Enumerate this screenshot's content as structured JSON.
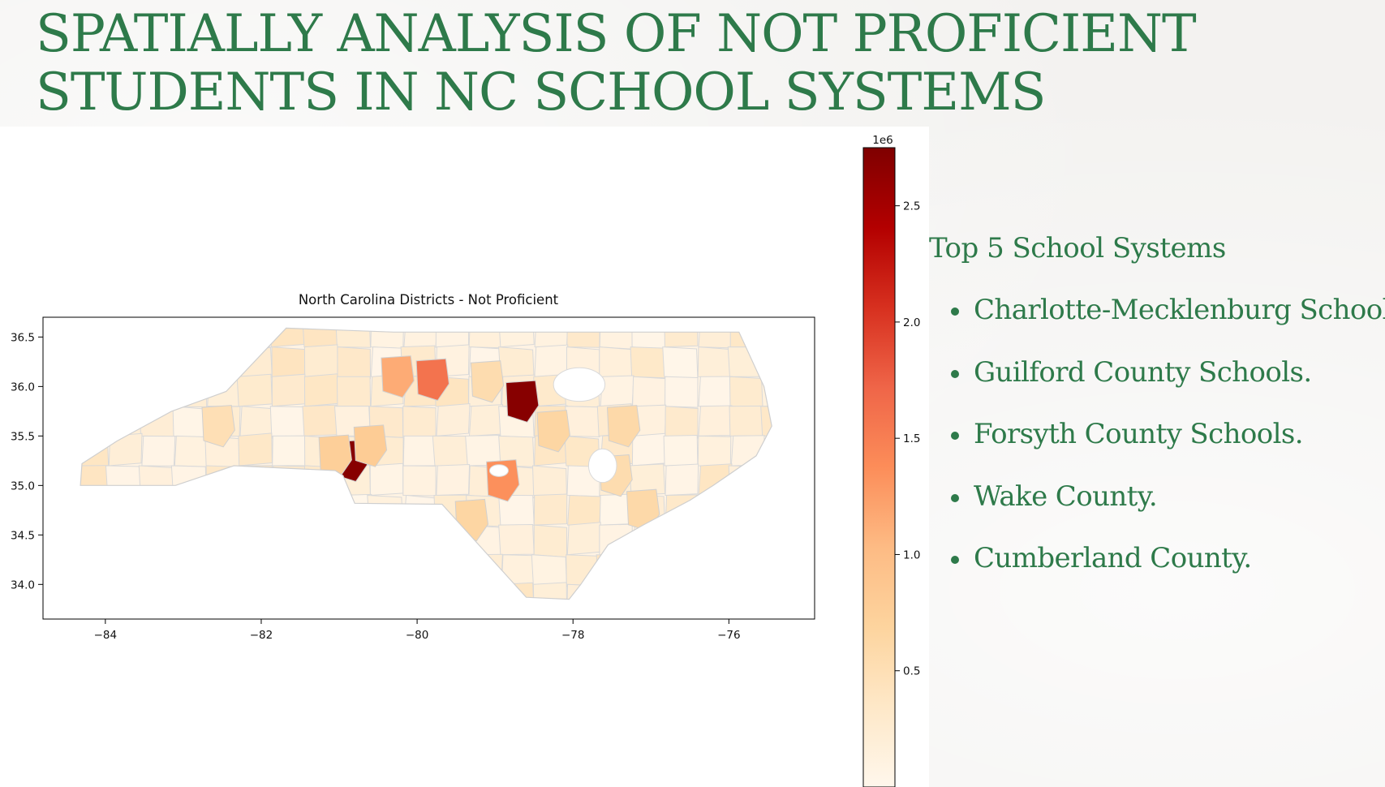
{
  "slide": {
    "title_lines": [
      "SPATIALLY ANALYSIS OF NOT PROFICIENT",
      "STUDENTS IN NC SCHOOL SYSTEMS"
    ],
    "accent_color": "#2e7a4a",
    "sidebar": {
      "heading": "Top 5 School Systems",
      "items": [
        "Charlotte-Mecklenburg Schools.",
        "Guilford County Schools.",
        "Forsyth County Schools.",
        "Wake County.",
        "Cumberland County."
      ]
    }
  },
  "chart_data": {
    "type": "choropleth map",
    "title": "North Carolina Districts - Not Proficient",
    "xlabel": "",
    "ylabel": "",
    "xlim": [
      -84.8,
      -74.9
    ],
    "ylim": [
      33.65,
      36.7
    ],
    "x_ticks": [
      -84,
      -82,
      -80,
      -78,
      -76
    ],
    "x_tick_labels": [
      "−84",
      "−82",
      "−80",
      "−78",
      "−76"
    ],
    "y_ticks": [
      34.0,
      34.5,
      35.0,
      35.5,
      36.0,
      36.5
    ],
    "y_tick_labels": [
      "34.0",
      "34.5",
      "35.0",
      "35.5",
      "36.0",
      "36.5"
    ],
    "colormap": "OrRd",
    "colorbar": {
      "range": [
        0,
        2750000
      ],
      "ticks": [
        500000,
        1000000,
        1500000,
        2000000,
        2500000
      ],
      "tick_labels": [
        "0.5",
        "1.0",
        "1.5",
        "2.0",
        "2.5"
      ],
      "offset_label": "1e6"
    },
    "highlighted_districts": [
      {
        "lon": -80.85,
        "lat": 35.25,
        "value": 2700000
      },
      {
        "lon": -78.65,
        "lat": 35.85,
        "value": 2700000
      },
      {
        "lon": -79.8,
        "lat": 36.07,
        "value": 1600000
      },
      {
        "lon": -80.25,
        "lat": 36.1,
        "value": 1150000
      },
      {
        "lon": -78.9,
        "lat": 35.05,
        "value": 1350000
      },
      {
        "lon": -80.6,
        "lat": 35.4,
        "value": 800000
      },
      {
        "lon": -81.05,
        "lat": 35.3,
        "value": 750000
      },
      {
        "lon": -79.3,
        "lat": 34.65,
        "value": 650000
      },
      {
        "lon": -78.25,
        "lat": 35.55,
        "value": 650000
      },
      {
        "lon": -77.35,
        "lat": 35.6,
        "value": 600000
      },
      {
        "lon": -77.1,
        "lat": 34.75,
        "value": 600000
      },
      {
        "lon": -77.45,
        "lat": 35.1,
        "value": 550000
      },
      {
        "lon": -79.1,
        "lat": 36.05,
        "value": 550000
      },
      {
        "lon": -82.55,
        "lat": 35.6,
        "value": 500000
      }
    ]
  }
}
